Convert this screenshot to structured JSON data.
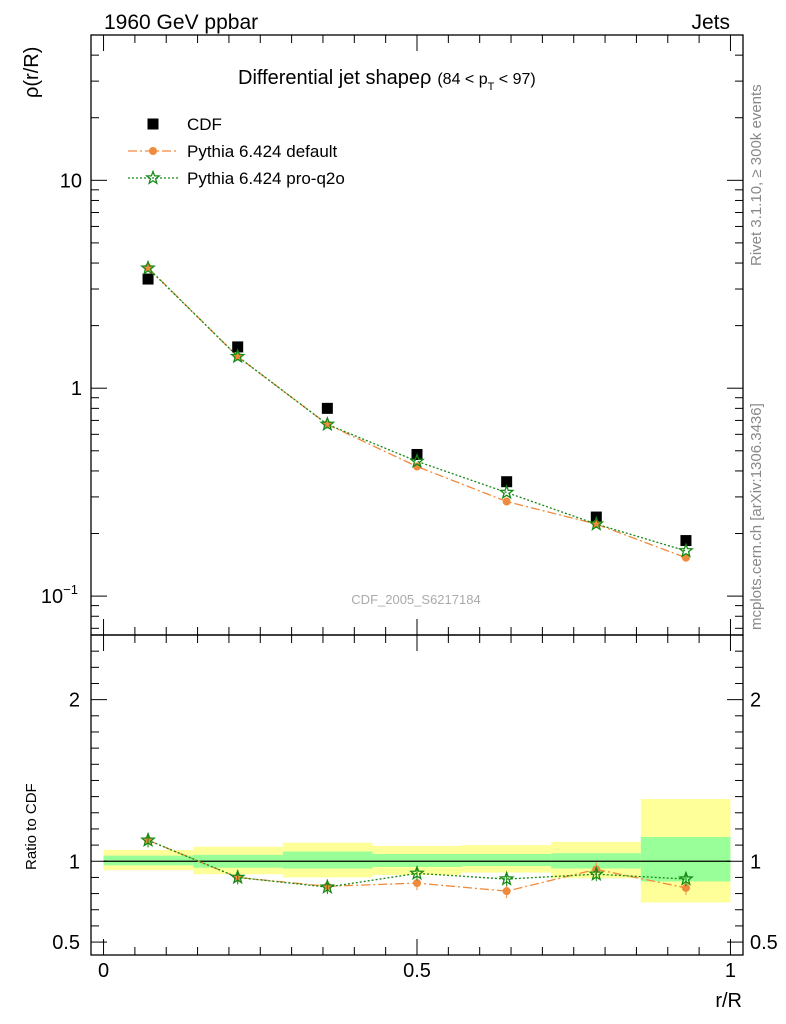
{
  "header": {
    "left": "1960 GeV ppbar",
    "right": "Jets",
    "watermark": "CDF_2005_S6217184",
    "side_top": "Rivet 3.1.10, ≥ 300k events",
    "side_bottom": "mcplots.cern.ch [arXiv:1306.3436]"
  },
  "chart_data": [
    {
      "type": "scatter",
      "panel": "main",
      "title": "Differential jet shapeρ",
      "title_suffix": "(84 < p",
      "title_sub": "T",
      "title_tail": " < 97)",
      "ylabel": "ρ(r/R)",
      "yscale": "log",
      "ylim": [
        0.065,
        50
      ],
      "xlim": [
        -0.02,
        1.02
      ],
      "y_tick_labels": [
        {
          "value": 10,
          "base": "10",
          "exp": ""
        },
        {
          "value": 1,
          "base": "1",
          "exp": ""
        },
        {
          "value": 0.1,
          "base": "10",
          "exp": "−1"
        }
      ],
      "x": [
        0.071,
        0.214,
        0.357,
        0.5,
        0.643,
        0.786,
        0.929
      ],
      "series": [
        {
          "name": "CDF",
          "color": "#000000",
          "marker": "square",
          "values": [
            3.35,
            1.58,
            0.8,
            0.48,
            0.355,
            0.24,
            0.185
          ]
        },
        {
          "name": "Pythia 6.424 default",
          "color": "#f08a3c",
          "marker": "circle",
          "line": "dashdot",
          "values": [
            3.8,
            1.42,
            0.67,
            0.42,
            0.285,
            0.222,
            0.153
          ]
        },
        {
          "name": "Pythia 6.424 pro-q2o",
          "color": "#158a15",
          "marker": "star",
          "line": "dotted",
          "values": [
            3.78,
            1.42,
            0.67,
            0.445,
            0.315,
            0.222,
            0.165
          ]
        }
      ]
    },
    {
      "type": "scatter",
      "panel": "ratio",
      "ylabel": "Ratio to CDF",
      "xlabel": "r/R",
      "ylim": [
        0.42,
        2.4
      ],
      "yticks": [
        0.5,
        1,
        2
      ],
      "y_tick_labels": [
        "0.5",
        "1",
        "2"
      ],
      "xticks": [
        0,
        0.5,
        1
      ],
      "x_tick_labels": [
        "0",
        "0.5",
        "1"
      ],
      "bands": {
        "edges": [
          0,
          0.143,
          0.286,
          0.429,
          0.571,
          0.714,
          0.857,
          1.0
        ],
        "yellow_color": "#ffff99",
        "green_color": "#99ff99",
        "yellow_lo": [
          0.945,
          0.92,
          0.9,
          0.915,
          0.93,
          0.895,
          0.745
        ],
        "yellow_hi": [
          1.07,
          1.09,
          1.115,
          1.095,
          1.1,
          1.12,
          1.385
        ],
        "green_lo": [
          0.975,
          0.96,
          0.955,
          0.965,
          0.97,
          0.955,
          0.875
        ],
        "green_hi": [
          1.035,
          1.04,
          1.06,
          1.045,
          1.045,
          1.05,
          1.15
        ]
      },
      "x": [
        0.071,
        0.214,
        0.357,
        0.5,
        0.643,
        0.786,
        0.929
      ],
      "series": [
        {
          "name": "Pythia 6.424 default",
          "color": "#f08a3c",
          "marker": "circle",
          "line": "dashdot",
          "values": [
            1.13,
            0.9,
            0.845,
            0.865,
            0.815,
            0.95,
            0.835
          ]
        },
        {
          "name": "Pythia 6.424 pro-q2o",
          "color": "#158a15",
          "marker": "star",
          "line": "dotted",
          "values": [
            1.13,
            0.9,
            0.84,
            0.925,
            0.89,
            0.92,
            0.89
          ]
        }
      ]
    }
  ]
}
